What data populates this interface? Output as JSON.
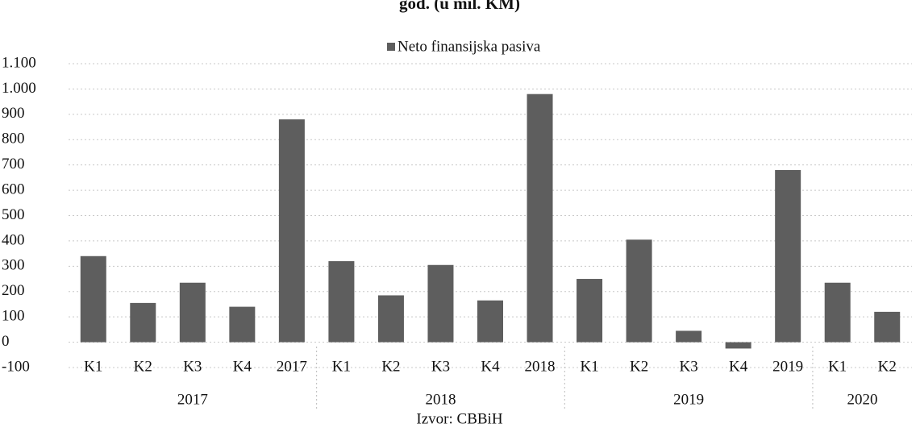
{
  "chart_data": {
    "type": "bar",
    "title": "god. (u mil. KM)",
    "legend": "Neto finansijska pasiva",
    "source": "Izvor: CBBiH",
    "color": "#5e5e5e",
    "categories": [
      "K1",
      "K2",
      "K3",
      "K4",
      "2017",
      "K1",
      "K2",
      "K3",
      "K4",
      "2018",
      "K1",
      "K2",
      "K3",
      "K4",
      "2019",
      "K1",
      "K2"
    ],
    "values": [
      340,
      155,
      235,
      140,
      880,
      320,
      185,
      305,
      165,
      980,
      250,
      405,
      45,
      -25,
      680,
      235,
      120
    ],
    "groups": [
      {
        "name": "2017",
        "size": 5
      },
      {
        "name": "2018",
        "size": 5
      },
      {
        "name": "2019",
        "size": 5
      },
      {
        "name": "2020",
        "size": 2
      }
    ],
    "ylim": [
      -100,
      1100
    ],
    "yticks": [
      -100,
      0,
      100,
      200,
      300,
      400,
      500,
      600,
      700,
      800,
      900,
      {
        "value": 1000,
        "label": "1.000"
      },
      {
        "value": 1100,
        "label": "1.100"
      }
    ],
    "grid": true
  }
}
